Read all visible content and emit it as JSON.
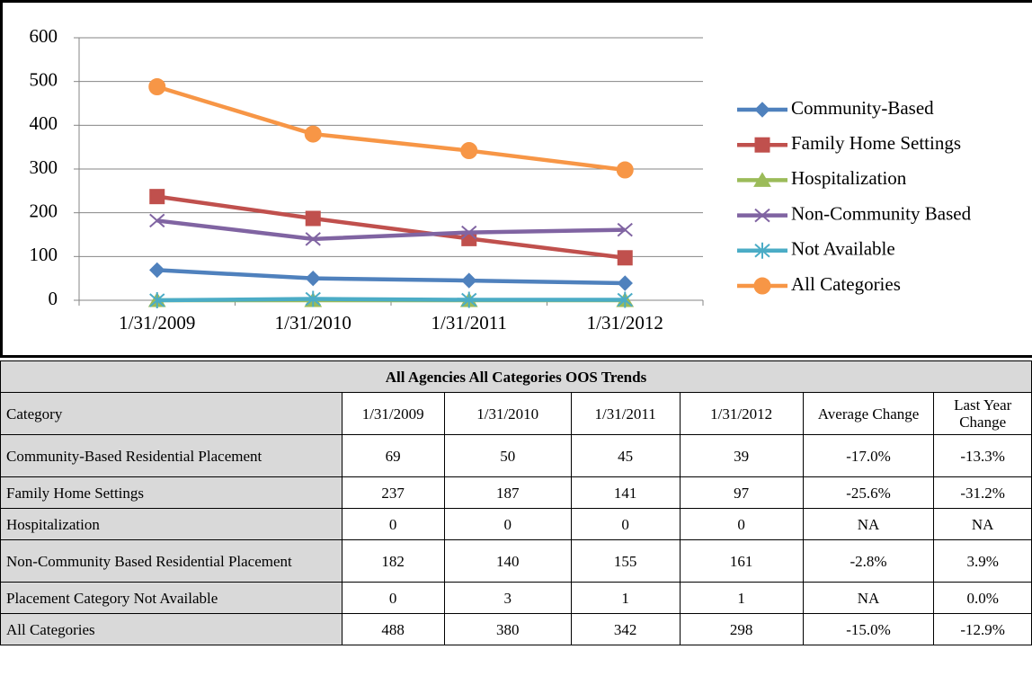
{
  "chart_data": {
    "type": "line",
    "categories": [
      "1/31/2009",
      "1/31/2010",
      "1/31/2011",
      "1/31/2012"
    ],
    "series": [
      {
        "name": "Community-Based",
        "color": "#4f81bd",
        "marker": "diamond",
        "values": [
          69,
          50,
          45,
          39
        ]
      },
      {
        "name": "Family Home Settings",
        "color": "#c0504d",
        "marker": "square",
        "values": [
          237,
          187,
          141,
          97
        ]
      },
      {
        "name": "Hospitalization",
        "color": "#9bbb59",
        "marker": "triangle",
        "values": [
          0,
          0,
          0,
          0
        ]
      },
      {
        "name": "Non-Community Based",
        "color": "#8064a2",
        "marker": "x",
        "values": [
          182,
          140,
          155,
          161
        ]
      },
      {
        "name": "Not Available",
        "color": "#4bacc6",
        "marker": "star",
        "values": [
          0,
          3,
          1,
          1
        ]
      },
      {
        "name": "All Categories",
        "color": "#f79646",
        "marker": "circle",
        "values": [
          488,
          380,
          342,
          298
        ]
      }
    ],
    "ylim": [
      0,
      600
    ],
    "yticks": [
      0,
      100,
      200,
      300,
      400,
      500,
      600
    ],
    "grid": true,
    "legend": "right"
  },
  "table": {
    "title": "All Agencies All Categories OOS Trends",
    "header": [
      "Category",
      "1/31/2009",
      "1/31/2010",
      "1/31/2011",
      "1/31/2012",
      "Average Change",
      "Last Year Change"
    ],
    "rows": [
      [
        "Community-Based Residential Placement",
        "69",
        "50",
        "45",
        "39",
        "-17.0%",
        "-13.3%"
      ],
      [
        "Family Home Settings",
        "237",
        "187",
        "141",
        "97",
        "-25.6%",
        "-31.2%"
      ],
      [
        "Hospitalization",
        "0",
        "0",
        "0",
        "0",
        "NA",
        "NA"
      ],
      [
        "Non-Community Based Residential Placement",
        "182",
        "140",
        "155",
        "161",
        "-2.8%",
        "3.9%"
      ],
      [
        "Placement Category Not Available",
        "0",
        "3",
        "1",
        "1",
        "NA",
        "0.0%"
      ],
      [
        "All Categories",
        "488",
        "380",
        "342",
        "298",
        "-15.0%",
        "-12.9%"
      ]
    ]
  }
}
